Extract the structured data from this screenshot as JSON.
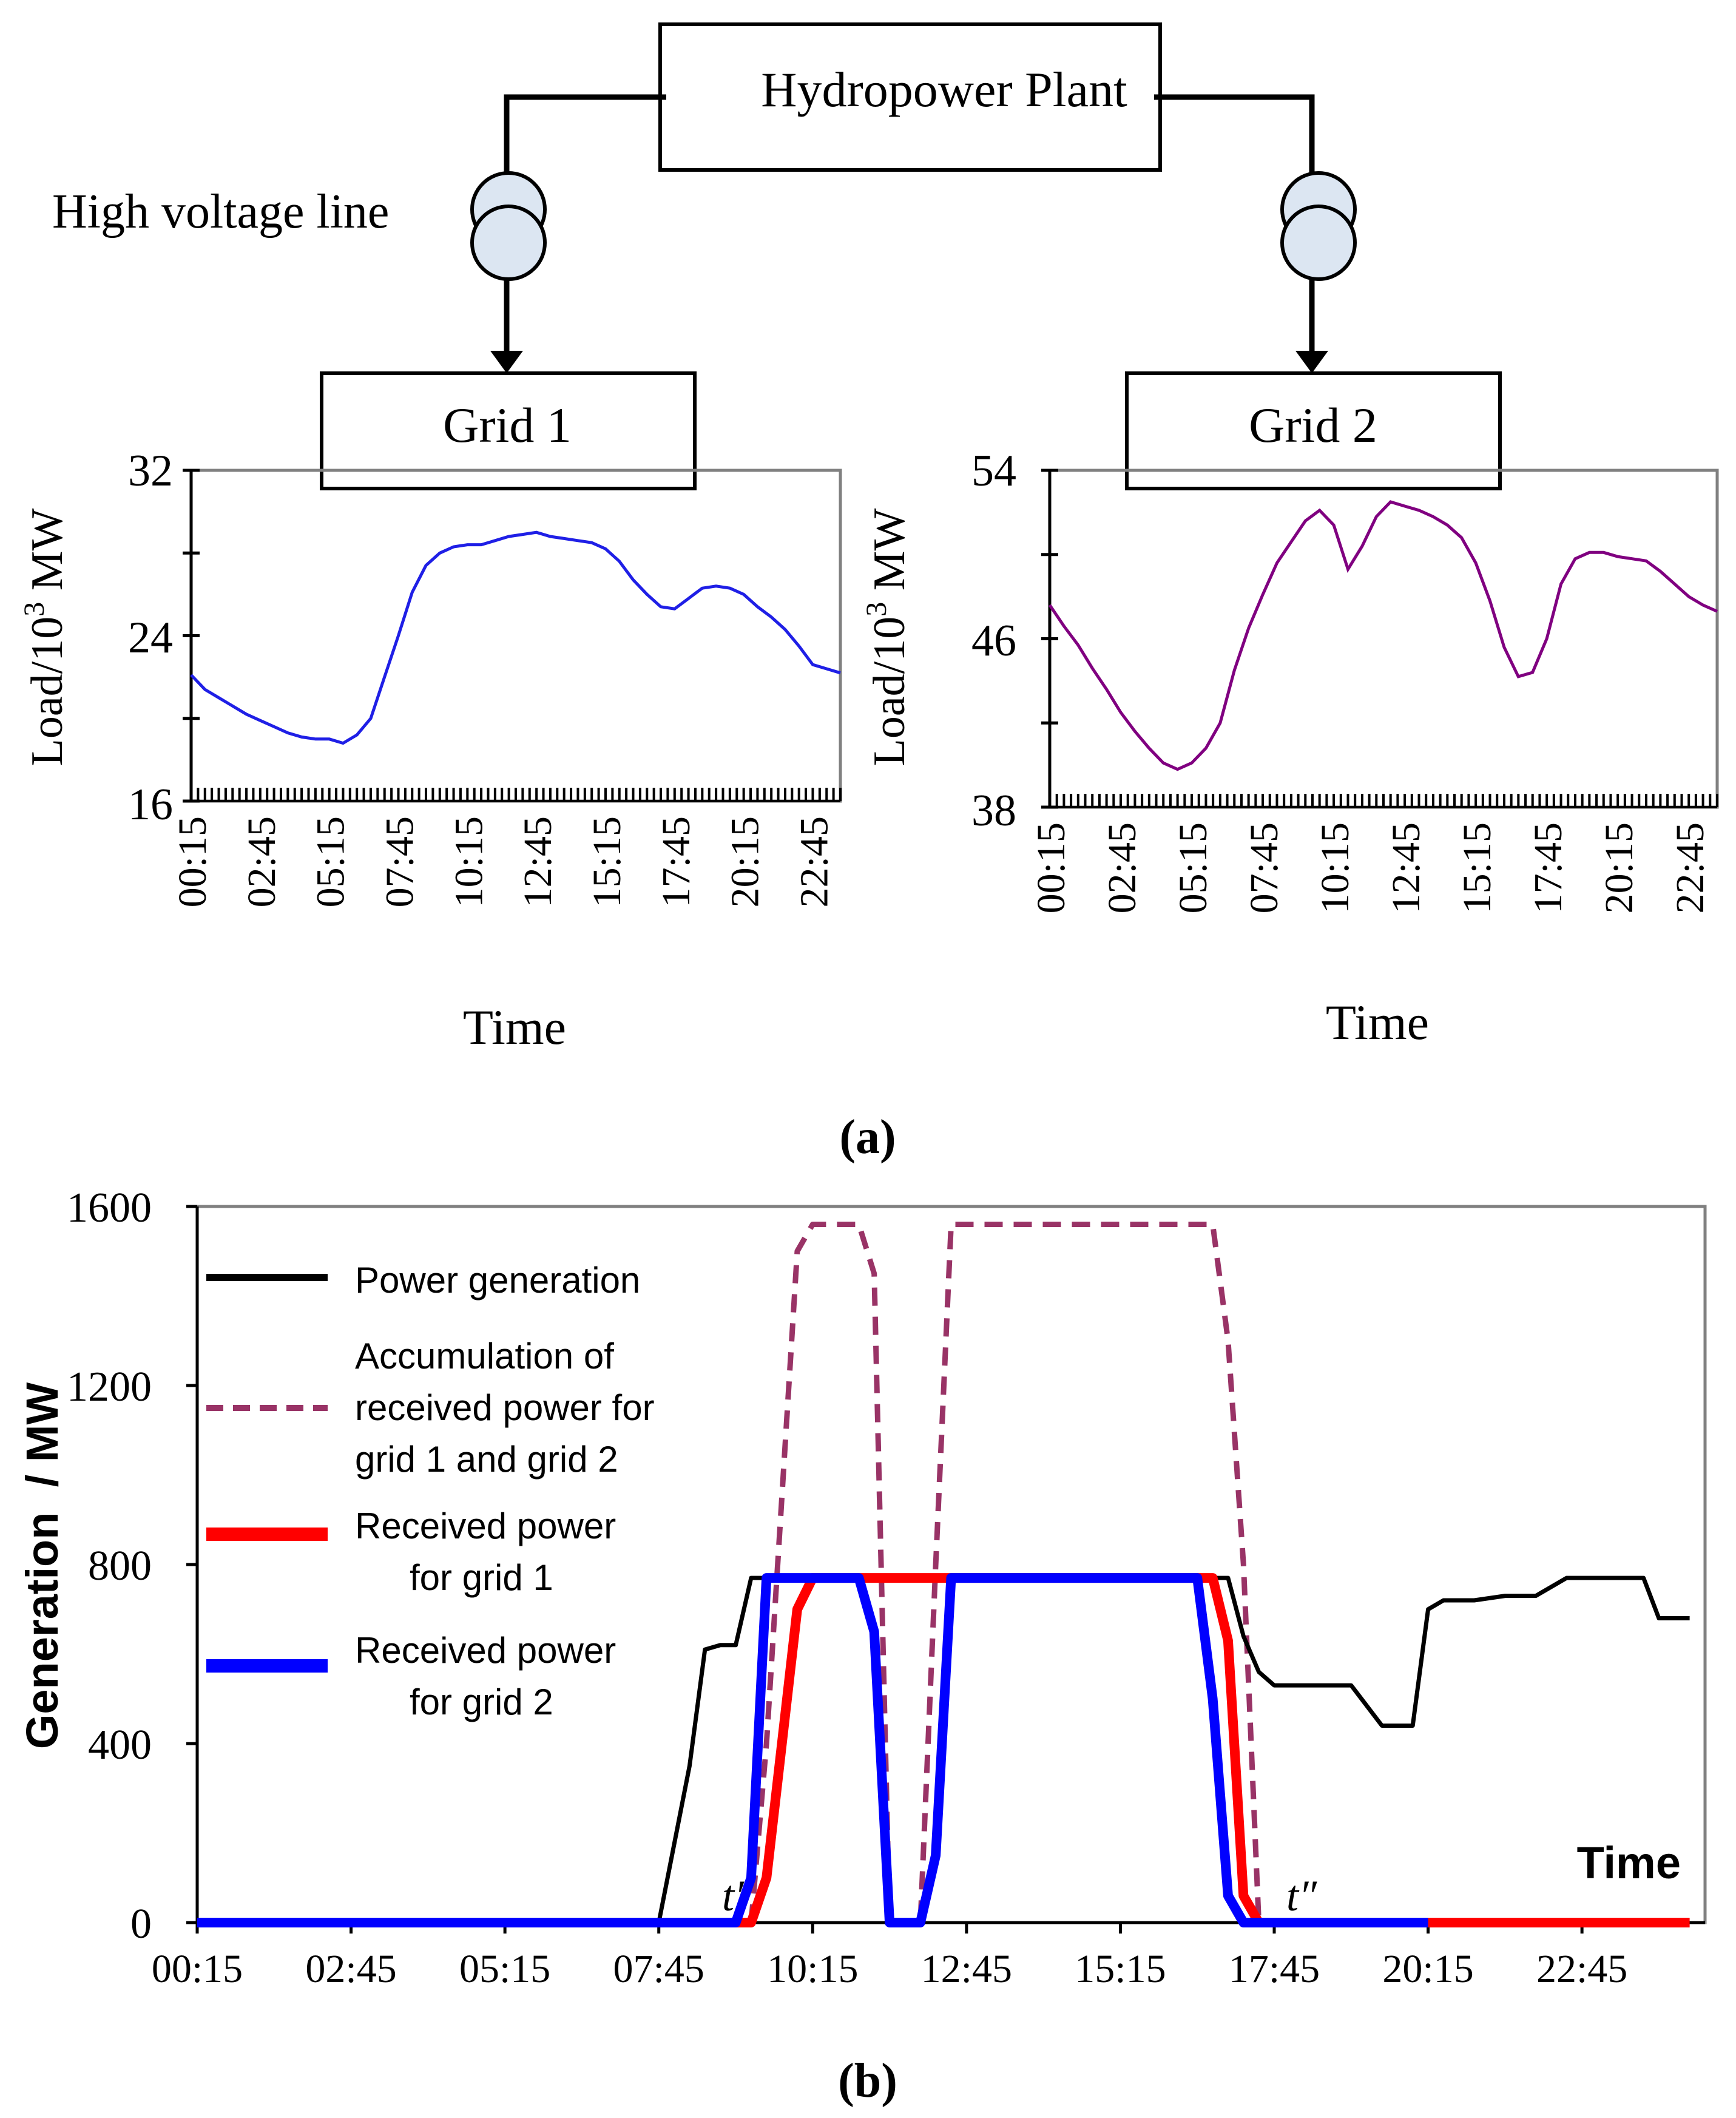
{
  "diagram": {
    "plant_label": "Hydropower Plant",
    "line_label": "High voltage line",
    "grid1_label": "Grid 1",
    "grid2_label": "Grid 2"
  },
  "captions": {
    "a": "(a)",
    "b": "(b)"
  },
  "chart_data": [
    {
      "type": "line",
      "id": "grid1-load",
      "ylabel": "Load/10³ MW",
      "ylabel_base": "Load/10",
      "ylabel_sup": "3",
      "ylabel_unit": " MW",
      "xlabel": "Time",
      "ylim": [
        16,
        32
      ],
      "yticks": [
        16,
        24,
        32
      ],
      "xticks": [
        "00:15",
        "02:45",
        "05:15",
        "07:45",
        "10:15",
        "12:45",
        "15:15",
        "17:45",
        "20:15",
        "22:45"
      ],
      "xrange_hours": [
        0.25,
        23.75
      ],
      "color": "#1f1fe6",
      "series": [
        {
          "x": [
            0.25,
            0.75,
            1.25,
            1.75,
            2.25,
            2.75,
            3.25,
            3.75,
            4.25,
            4.75,
            5.25,
            5.75,
            6.25,
            6.75,
            7.25,
            7.75,
            8.25,
            8.75,
            9.25,
            9.75,
            10.25,
            10.75,
            11.25,
            11.75,
            12.25,
            12.75,
            13.25,
            13.75,
            14.25,
            14.75,
            15.25,
            15.75,
            16.25,
            16.75,
            17.25,
            17.75,
            18.25,
            18.75,
            19.25,
            19.75,
            20.25,
            20.75,
            21.25,
            21.75,
            22.25,
            22.75,
            23.25,
            23.75
          ],
          "y": [
            22.1,
            21.4,
            21.0,
            20.6,
            20.2,
            19.9,
            19.6,
            19.3,
            19.1,
            19.0,
            19.0,
            18.8,
            19.2,
            20.0,
            22.0,
            24.0,
            26.1,
            27.4,
            28.0,
            28.3,
            28.4,
            28.4,
            28.6,
            28.8,
            28.9,
            29.0,
            28.8,
            28.7,
            28.6,
            28.5,
            28.2,
            27.6,
            26.7,
            26.0,
            25.4,
            25.3,
            25.8,
            26.3,
            26.4,
            26.3,
            26.0,
            25.4,
            24.9,
            24.3,
            23.5,
            22.6,
            22.4,
            22.2
          ]
        }
      ]
    },
    {
      "type": "line",
      "id": "grid2-load",
      "ylabel": "Load/10³ MW",
      "ylabel_base": "Load/10",
      "ylabel_sup": "3",
      "ylabel_unit": " MW",
      "xlabel": "Time",
      "ylim": [
        38,
        54
      ],
      "yticks": [
        38,
        46,
        54
      ],
      "xticks": [
        "00:15",
        "02:45",
        "05:15",
        "07:45",
        "10:15",
        "12:45",
        "15:15",
        "17:45",
        "20:15",
        "22:45"
      ],
      "xrange_hours": [
        0.25,
        23.75
      ],
      "color": "#800080",
      "series": [
        {
          "x": [
            0.25,
            0.75,
            1.25,
            1.75,
            2.25,
            2.75,
            3.25,
            3.75,
            4.25,
            4.75,
            5.25,
            5.75,
            6.25,
            6.75,
            7.25,
            7.75,
            8.25,
            8.75,
            9.25,
            9.75,
            10.25,
            10.75,
            11.25,
            11.75,
            12.25,
            12.75,
            13.25,
            13.75,
            14.25,
            14.75,
            15.25,
            15.75,
            16.25,
            16.75,
            17.25,
            17.75,
            18.25,
            18.75,
            19.25,
            19.75,
            20.25,
            20.75,
            21.25,
            21.75,
            22.25,
            22.75,
            23.25,
            23.75
          ],
          "y": [
            47.6,
            46.6,
            45.7,
            44.6,
            43.6,
            42.5,
            41.6,
            40.8,
            40.1,
            39.8,
            40.1,
            40.8,
            42.0,
            44.5,
            46.5,
            48.1,
            49.6,
            50.6,
            51.6,
            52.1,
            51.4,
            49.3,
            50.4,
            51.8,
            52.5,
            52.3,
            52.1,
            51.8,
            51.4,
            50.8,
            49.6,
            47.8,
            45.6,
            44.2,
            44.4,
            46.0,
            48.6,
            49.8,
            50.1,
            50.1,
            49.9,
            49.8,
            49.7,
            49.2,
            48.6,
            48.0,
            47.6,
            47.3
          ]
        }
      ]
    },
    {
      "type": "line",
      "id": "generation",
      "ylabel": "Generation  / MW",
      "xlabel": "Time",
      "ylim": [
        0,
        1600
      ],
      "yticks": [
        0,
        400,
        800,
        1200,
        1600
      ],
      "xticks": [
        "00:15",
        "02:45",
        "05:15",
        "07:45",
        "10:15",
        "12:45",
        "15:15",
        "17:45",
        "20:15",
        "22:45"
      ],
      "xrange_hours": [
        0.25,
        24.75
      ],
      "annotations": [
        "t′",
        "t″"
      ],
      "legend_position": "top-left",
      "series": [
        {
          "name": "Power generation",
          "color": "#000000",
          "dash": "solid",
          "x": [
            0.25,
            7.75,
            8.25,
            8.5,
            8.75,
            9.0,
            9.25,
            9.5,
            9.75,
            10.0,
            16.75,
            17.0,
            17.25,
            17.5,
            17.75,
            18.0,
            18.5,
            19.0,
            19.5,
            20.0,
            20.25,
            20.5,
            21.0,
            21.5,
            22.0,
            22.5,
            23.0,
            23.5,
            23.75,
            24.0,
            24.5
          ],
          "y": [
            0,
            0,
            350,
            610,
            620,
            620,
            770,
            770,
            770,
            770,
            770,
            770,
            640,
            560,
            530,
            530,
            530,
            530,
            440,
            440,
            700,
            720,
            720,
            730,
            730,
            770,
            770,
            770,
            770,
            680,
            680
          ]
        },
        {
          "name": "Accumulation of received power for grid 1 and grid 2",
          "color": "#993366",
          "dash": "dashed",
          "x": [
            9.25,
            9.5,
            10.0,
            10.25,
            10.5,
            11.0,
            11.25,
            11.5,
            11.75,
            12.0,
            12.25,
            12.5,
            16.75,
            17.0,
            17.25,
            17.5
          ],
          "y": [
            0,
            400,
            1500,
            1560,
            1560,
            1560,
            1450,
            0,
            0,
            0,
            800,
            1560,
            1560,
            1300,
            800,
            0
          ]
        },
        {
          "name": "Received power for grid 1",
          "color": "#ff0000",
          "dash": "solid",
          "x": [
            0.25,
            9.25,
            9.5,
            9.75,
            10.0,
            10.25,
            12.5,
            16.5,
            16.75,
            17.0,
            17.25,
            17.5,
            24.5
          ],
          "y": [
            0,
            0,
            100,
            400,
            700,
            770,
            770,
            770,
            770,
            630,
            60,
            0,
            0
          ]
        },
        {
          "name": "Received power for grid 2",
          "color": "#0000ff",
          "dash": "solid",
          "x": [
            0.25,
            9.0,
            9.25,
            9.5,
            9.75,
            11.0,
            11.25,
            11.5,
            12.0,
            12.25,
            12.5,
            16.5,
            16.75,
            17.0,
            17.25,
            20.25
          ],
          "y": [
            0,
            0,
            100,
            770,
            770,
            770,
            650,
            0,
            0,
            150,
            770,
            770,
            500,
            60,
            0,
            0
          ]
        }
      ]
    }
  ]
}
